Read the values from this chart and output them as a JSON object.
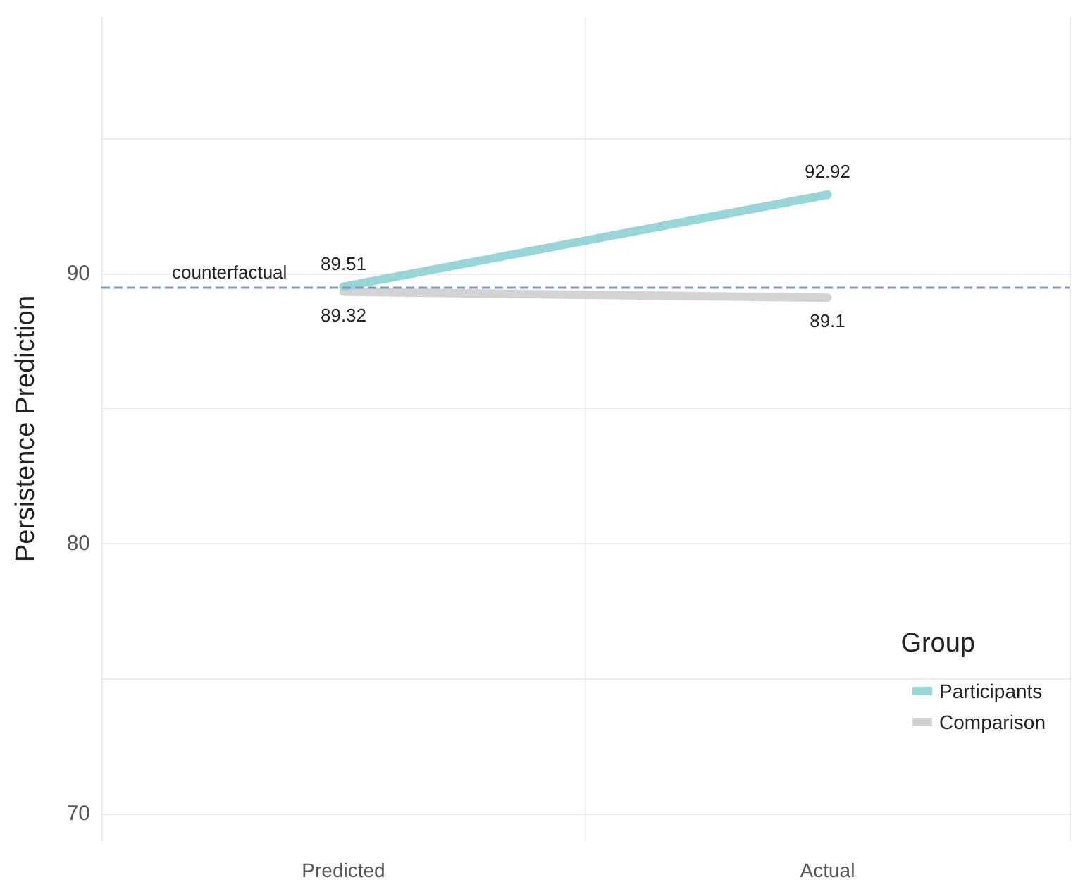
{
  "chart_data": {
    "type": "line",
    "ylabel": "Persistence Prediction",
    "legend_title": "Group",
    "categories": [
      "Predicted",
      "Actual"
    ],
    "series": [
      {
        "name": "Participants",
        "color": "#96d5d8",
        "values": [
          89.51,
          92.92
        ]
      },
      {
        "name": "Comparison",
        "color": "#d3d3d3",
        "values": [
          89.32,
          89.1
        ]
      }
    ],
    "ylim": [
      69,
      99.5
    ],
    "yticks": [
      70,
      {
        "value": 75,
        "label": null
      },
      80,
      {
        "value": 85,
        "label": null
      },
      90,
      {
        "value": 95,
        "label": null
      }
    ],
    "ref_lines": [
      {
        "axis": "y",
        "value": 89.5,
        "label": "counterfactual",
        "color": "#7f9bb8",
        "line_style": "dashed"
      }
    ],
    "data_labels": true,
    "grid": true,
    "legend": "bottom right",
    "marker": "none"
  }
}
